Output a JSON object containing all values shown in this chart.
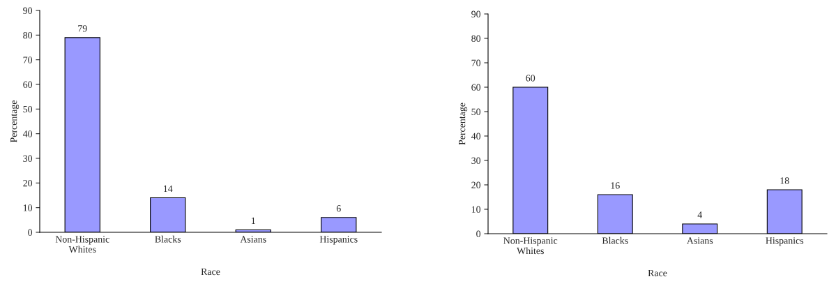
{
  "chart_data": [
    {
      "type": "bar",
      "categories": [
        "Non-Hispanic\nWhites",
        "Blacks",
        "Asians",
        "Hispanics"
      ],
      "values": [
        79,
        14,
        1,
        6
      ],
      "color": "#9999ff",
      "xlabel": "Race",
      "ylabel": "Percentage",
      "ylim": [
        0,
        90
      ],
      "yticks": [
        0,
        10,
        20,
        30,
        40,
        50,
        60,
        70,
        80,
        90
      ],
      "data_labels": true,
      "grid": false,
      "legend": false
    },
    {
      "type": "bar",
      "categories": [
        "Non-Hispanic\nWhites",
        "Blacks",
        "Asians",
        "Hispanics"
      ],
      "values": [
        60,
        16,
        4,
        18
      ],
      "color": "#9999ff",
      "xlabel": "Race",
      "ylabel": "Percentage",
      "ylim": [
        0,
        90
      ],
      "yticks": [
        0,
        10,
        20,
        30,
        40,
        50,
        60,
        70,
        80,
        90
      ],
      "data_labels": true,
      "grid": false,
      "legend": false
    }
  ]
}
